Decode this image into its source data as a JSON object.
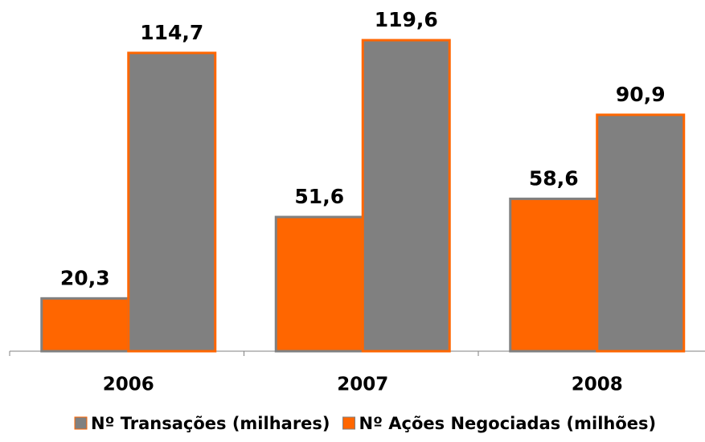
{
  "chart_data": {
    "type": "bar",
    "categories": [
      "2006",
      "2007",
      "2008"
    ],
    "series": [
      {
        "name": "Nº Transações (milhares)",
        "color": "#ff6600",
        "border": "#808080",
        "values": [
          20.3,
          51.6,
          58.6
        ],
        "value_labels": [
          "20,3",
          "51,6",
          "58,6"
        ]
      },
      {
        "name": "Nº Ações Negociadas (milhões)",
        "color": "#808080",
        "border": "#ff6600",
        "values": [
          114.7,
          119.6,
          90.9
        ],
        "value_labels": [
          "114,7",
          "119,6",
          "90,9"
        ]
      }
    ]
  }
}
